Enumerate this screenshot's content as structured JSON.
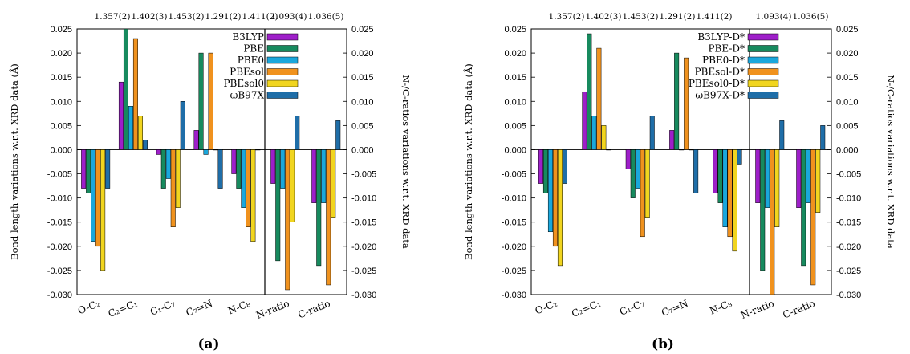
{
  "chart_data": [
    {
      "type": "bar",
      "panel_label": "(a)",
      "left_ylabel": "Bond length variations w.r.t. XRD data (Å)",
      "right_ylabel": "N-/C-ratios variations w.r.t. XRD data",
      "ylim": [
        -0.03,
        0.025
      ],
      "yticks": [
        "0.025",
        "0.020",
        "0.015",
        "0.010",
        "0.005",
        "0.000",
        "-0.005",
        "-0.010",
        "-0.015",
        "-0.020",
        "-0.025",
        "-0.030"
      ],
      "right_yticks": [
        "0.025",
        "0.020",
        "0.015",
        "0.010",
        "0.005",
        "0.000",
        "-0.005",
        "-0.010",
        "-0.015",
        "-0.020",
        "-0.025",
        "-0.030"
      ],
      "categories": [
        "O-C₂",
        "C₂=C₁",
        "C₁-C₇",
        "C₇=N",
        "N-C₈",
        "N-ratio",
        "C-ratio"
      ],
      "top_values": [
        "1.357(2)",
        "1.402(3)",
        "1.453(2)",
        "1.291(2)",
        "1.411(2)",
        "1.093(4)",
        "1.036(5)"
      ],
      "series": [
        {
          "name": "B3LYP",
          "color": "#9e1fc9",
          "values": [
            -0.008,
            0.014,
            -0.001,
            0.004,
            -0.005,
            -0.007,
            -0.011
          ]
        },
        {
          "name": "PBE",
          "color": "#178a5e",
          "values": [
            -0.009,
            0.025,
            -0.008,
            0.02,
            -0.008,
            -0.023,
            -0.024
          ]
        },
        {
          "name": "PBE0",
          "color": "#1aa7dc",
          "values": [
            -0.019,
            0.009,
            -0.006,
            -0.001,
            -0.012,
            -0.008,
            -0.011
          ]
        },
        {
          "name": "PBEsol",
          "color": "#f0921e",
          "values": [
            -0.02,
            0.023,
            -0.016,
            0.02,
            -0.016,
            -0.029,
            -0.028
          ]
        },
        {
          "name": "PBEsol0",
          "color": "#f1d51f",
          "values": [
            -0.025,
            0.007,
            -0.012,
            0.0,
            -0.019,
            -0.015,
            -0.014
          ]
        },
        {
          "name": "ωB97X",
          "color": "#1f6ea8",
          "values": [
            -0.008,
            0.002,
            0.01,
            -0.008,
            0.0,
            0.007,
            0.006
          ]
        }
      ]
    },
    {
      "type": "bar",
      "panel_label": "(b)",
      "left_ylabel": "Bond length variations w.r.t. XRD data (Å)",
      "right_ylabel": "N-/C-ratios variations w.r.t. XRD data",
      "ylim": [
        -0.03,
        0.025
      ],
      "yticks": [
        "0.025",
        "0.020",
        "0.015",
        "0.010",
        "0.005",
        "0.000",
        "-0.005",
        "-0.010",
        "-0.015",
        "-0.020",
        "-0.025",
        "-0.030"
      ],
      "right_yticks": [
        "0.025",
        "0.020",
        "0.015",
        "0.010",
        "0.005",
        "0.000",
        "-0.005",
        "-0.010",
        "-0.015",
        "-0.020",
        "-0.025",
        "-0.030"
      ],
      "categories": [
        "O-C₂",
        "C₂=C₁",
        "C₁-C₇",
        "C₇=N",
        "N-C₈",
        "N-ratio",
        "C-ratio"
      ],
      "top_values": [
        "1.357(2)",
        "1.402(3)",
        "1.453(2)",
        "1.291(2)",
        "1.411(2)",
        "1.093(4)",
        "1.036(5)"
      ],
      "series": [
        {
          "name": "B3LYP-D*",
          "color": "#9e1fc9",
          "values": [
            -0.007,
            0.012,
            -0.004,
            0.004,
            -0.009,
            -0.011,
            -0.012
          ]
        },
        {
          "name": "PBE-D*",
          "color": "#178a5e",
          "values": [
            -0.009,
            0.024,
            -0.01,
            0.02,
            -0.011,
            -0.025,
            -0.024
          ]
        },
        {
          "name": "PBE0-D*",
          "color": "#1aa7dc",
          "values": [
            -0.017,
            0.007,
            -0.008,
            0.0,
            -0.016,
            -0.012,
            -0.011
          ]
        },
        {
          "name": "PBEsol-D*",
          "color": "#f0921e",
          "values": [
            -0.02,
            0.021,
            -0.018,
            0.019,
            -0.018,
            -0.03,
            -0.028
          ]
        },
        {
          "name": "PBEsol0-D*",
          "color": "#f1d51f",
          "values": [
            -0.024,
            0.005,
            -0.014,
            0.0,
            -0.021,
            -0.016,
            -0.013
          ]
        },
        {
          "name": "ωB97X-D*",
          "color": "#1f6ea8",
          "values": [
            -0.007,
            0.0,
            0.007,
            -0.009,
            -0.003,
            0.006,
            0.005
          ]
        }
      ]
    }
  ]
}
